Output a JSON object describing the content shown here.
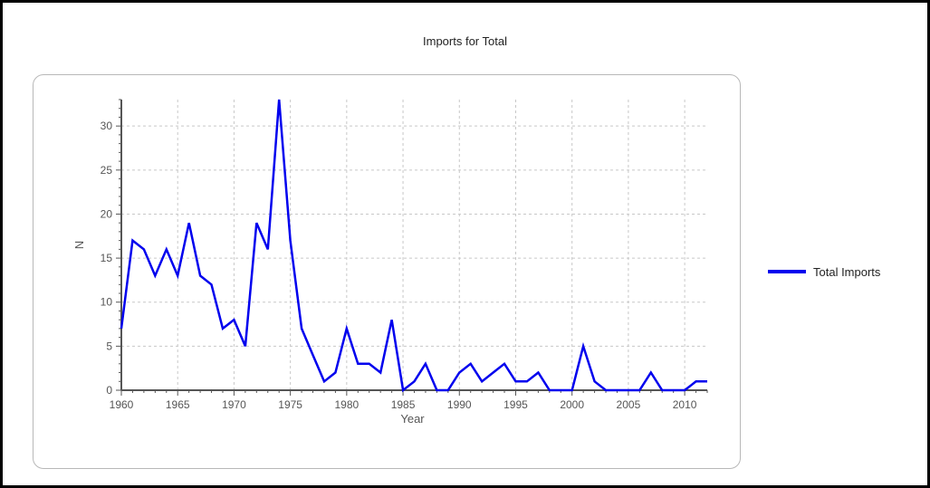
{
  "chart_data": {
    "type": "line",
    "title": "Imports for Total",
    "xlabel": "Year",
    "ylabel": "N",
    "xlim": [
      1960,
      2012
    ],
    "ylim": [
      0,
      33
    ],
    "xticks": [
      1960,
      1965,
      1970,
      1975,
      1980,
      1985,
      1990,
      1995,
      2000,
      2005,
      2010
    ],
    "yticks": [
      0,
      5,
      10,
      15,
      20,
      25,
      30
    ],
    "grid": true,
    "legend_position": "right",
    "x": [
      1960,
      1961,
      1962,
      1963,
      1964,
      1965,
      1966,
      1967,
      1968,
      1969,
      1970,
      1971,
      1972,
      1973,
      1974,
      1975,
      1976,
      1977,
      1978,
      1979,
      1980,
      1981,
      1982,
      1983,
      1984,
      1985,
      1986,
      1987,
      1988,
      1989,
      1990,
      1991,
      1992,
      1993,
      1994,
      1995,
      1996,
      1997,
      1998,
      1999,
      2000,
      2001,
      2002,
      2003,
      2004,
      2005,
      2006,
      2007,
      2008,
      2009,
      2010,
      2011,
      2012
    ],
    "series": [
      {
        "name": "Total Imports",
        "color": "#0000ee",
        "values": [
          7,
          17,
          16,
          13,
          16,
          13,
          19,
          13,
          12,
          7,
          8,
          5,
          19,
          16,
          33,
          17,
          7,
          4,
          1,
          2,
          7,
          3,
          3,
          2,
          8,
          0,
          1,
          3,
          0,
          0,
          2,
          3,
          1,
          2,
          3,
          1,
          1,
          2,
          0,
          0,
          0,
          5,
          1,
          0,
          0,
          0,
          0,
          2,
          0,
          0,
          0,
          1,
          1
        ]
      }
    ]
  }
}
